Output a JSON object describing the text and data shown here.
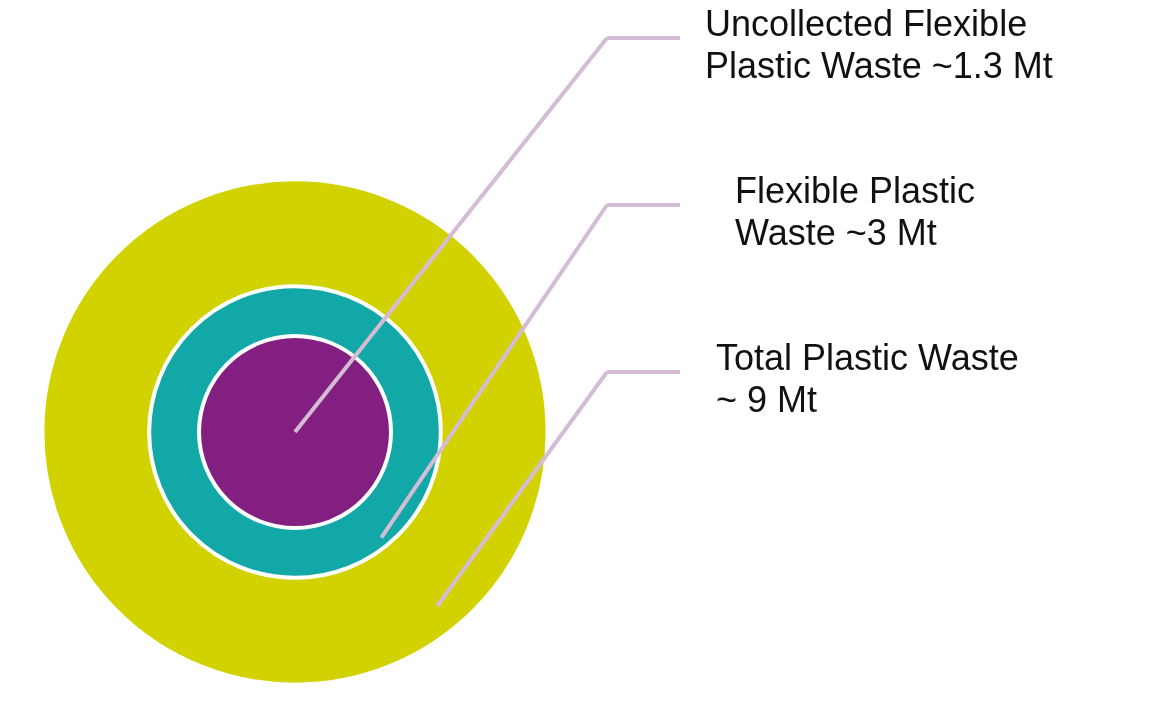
{
  "chart_data": {
    "type": "other",
    "categories": [
      "Uncollected Flexible Plastic Waste",
      "Flexible Plastic Waste",
      "Total Plastic Waste"
    ],
    "values": [
      1.3,
      3,
      9
    ],
    "value_labels": [
      "~1.3 Mt",
      "~3 Mt",
      "~ 9 Mt"
    ],
    "colors": [
      "#821f80",
      "#13a8a8",
      "#d2d200"
    ]
  }
}
